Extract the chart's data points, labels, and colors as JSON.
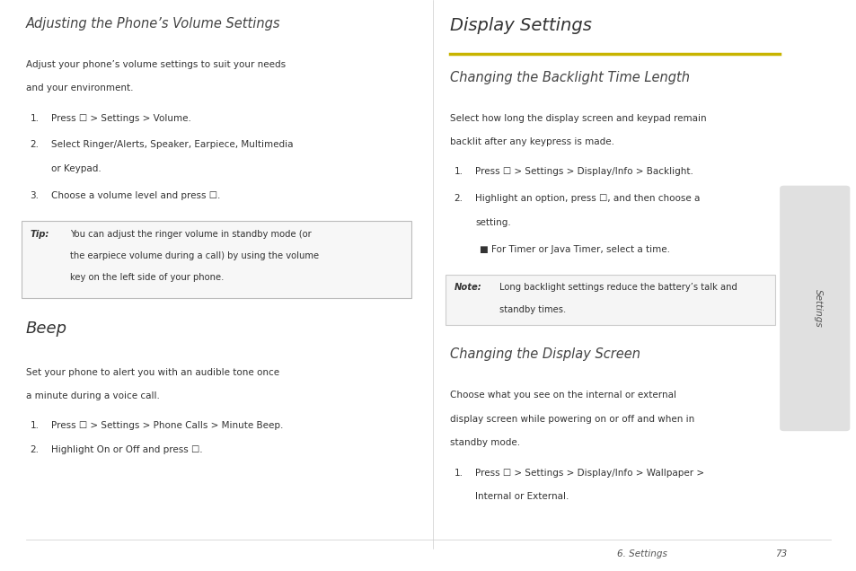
{
  "bg_color": "#ffffff",
  "page_width": 9.54,
  "page_height": 6.36,
  "yellow_line_color": "#c8b400",
  "sidebar_color": "#e0e0e0",
  "sidebar_text": "Settings",
  "footer_text": "6. Settings",
  "footer_page": "73",
  "sections": {
    "left": {
      "title": "Adjusting the Phone’s Volume Settings",
      "intro": "Adjust your phone’s volume settings to suit your needs\nand your environment.",
      "steps": [
        "Press ☐ > Settings > Volume.",
        "Select Ringer/Alerts, Speaker, Earpiece, Multimedia\nor Keypad.",
        "Choose a volume level and press ☐."
      ],
      "tip_label": "Tip:",
      "tip_text": "You can adjust the ringer volume in standby mode (or\nthe earpiece volume during a call) by using the volume\nkey on the left side of your phone.",
      "beep_title": "Beep",
      "beep_intro": "Set your phone to alert you with an audible tone once\na minute during a voice call.",
      "beep_steps": [
        "Press ☐ > Settings > Phone Calls > Minute Beep.",
        "Highlight On or Off and press ☐."
      ]
    },
    "right": {
      "main_title": "Display Settings",
      "section1_title": "Changing the Backlight Time Length",
      "section1_intro": "Select how long the display screen and keypad remain\nbacklit after any keypress is made.",
      "section1_steps": [
        "Press ☐ > Settings > Display/Info > Backlight.",
        "Highlight an option, press ☐, and then choose a\nsetting."
      ],
      "section1_bullet": "For Timer or Java Timer, select a time.",
      "note_label": "Note:",
      "note_text": "Long backlight settings reduce the battery’s talk and\nstandby times.",
      "section2_title": "Changing the Display Screen",
      "section2_intro": "Choose what you see on the internal or external\ndisplay screen while powering on or off and when in\nstandby mode.",
      "section2_steps": [
        "Press ☐ > Settings > Display/Info > Wallpaper >\nInternal or External."
      ]
    }
  }
}
